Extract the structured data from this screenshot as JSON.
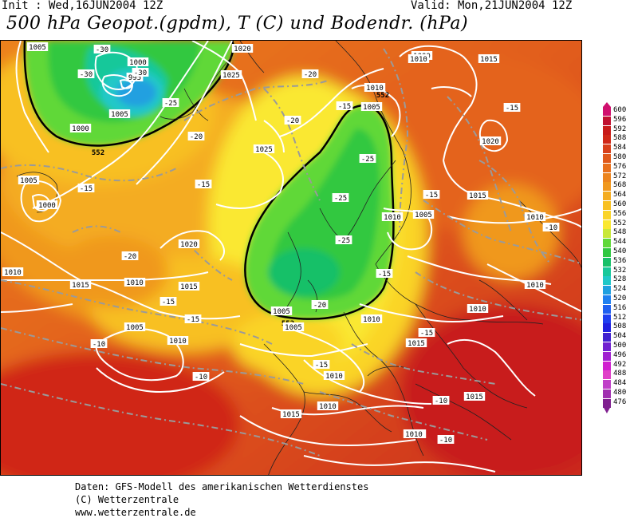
{
  "header": {
    "init": "Init : Wed,16JUN2004 12Z",
    "valid": "Valid: Mon,21JUN2004 12Z",
    "title": "500 hPa Geopot.(gpdm), T (C) und Bodendr. (hPa)"
  },
  "legend": {
    "levels": [
      "600",
      "596",
      "592",
      "588",
      "584",
      "580",
      "576",
      "572",
      "568",
      "564",
      "560",
      "556",
      "552",
      "548",
      "544",
      "540",
      "536",
      "532",
      "528",
      "524",
      "520",
      "516",
      "512",
      "508",
      "504",
      "500",
      "496",
      "492",
      "488",
      "484",
      "480",
      "476"
    ],
    "colors": [
      "#d0106e",
      "#c01030",
      "#c81a1a",
      "#d02818",
      "#d8401a",
      "#e0581a",
      "#e8701c",
      "#ec841e",
      "#f0981e",
      "#f4ac20",
      "#f8c020",
      "#fad428",
      "#fae830",
      "#c8e838",
      "#60d838",
      "#30c840",
      "#18c068",
      "#18c89a",
      "#20c8c8",
      "#20a0e0",
      "#2080f0",
      "#2060f0",
      "#2040f0",
      "#2020e0",
      "#4020d0",
      "#7020d0",
      "#a020d0",
      "#d020d0",
      "#e040c8",
      "#c040c8",
      "#a030b0",
      "#802090"
    ]
  },
  "map": {
    "labels": [
      {
        "text": "1005",
        "kind": "pressure"
      },
      {
        "text": "-30",
        "kind": "temperature"
      },
      {
        "text": "1000",
        "kind": "pressure"
      },
      {
        "text": "995",
        "kind": "pressure"
      },
      {
        "text": "-30",
        "kind": "temperature"
      },
      {
        "text": "-30",
        "kind": "temperature"
      },
      {
        "text": "1020",
        "kind": "pressure"
      },
      {
        "text": "1025",
        "kind": "pressure"
      },
      {
        "text": "-25",
        "kind": "temperature"
      },
      {
        "text": "-20",
        "kind": "temperature"
      },
      {
        "text": "1005",
        "kind": "pressure"
      },
      {
        "text": "1000",
        "kind": "pressure"
      },
      {
        "text": "552",
        "kind": "geopotential"
      },
      {
        "text": "-20",
        "kind": "temperature"
      },
      {
        "text": "1005",
        "kind": "pressure"
      },
      {
        "text": "1000",
        "kind": "pressure"
      },
      {
        "text": "-15",
        "kind": "temperature"
      },
      {
        "text": "-15",
        "kind": "temperature"
      },
      {
        "text": "1020",
        "kind": "pressure"
      },
      {
        "text": "1010",
        "kind": "pressure"
      },
      {
        "text": "1015",
        "kind": "pressure"
      },
      {
        "text": "-20",
        "kind": "temperature"
      },
      {
        "text": "1010",
        "kind": "pressure"
      },
      {
        "text": "1015",
        "kind": "pressure"
      },
      {
        "text": "-15",
        "kind": "temperature"
      },
      {
        "text": "-15",
        "kind": "temperature"
      },
      {
        "text": "1005",
        "kind": "pressure"
      },
      {
        "text": "1010",
        "kind": "pressure"
      },
      {
        "text": "-10",
        "kind": "temperature"
      },
      {
        "text": "-10",
        "kind": "temperature"
      },
      {
        "text": "-20",
        "kind": "temperature"
      },
      {
        "text": "1025",
        "kind": "pressure"
      },
      {
        "text": "1010",
        "kind": "pressure"
      },
      {
        "text": "1005",
        "kind": "pressure"
      },
      {
        "text": "552",
        "kind": "geopotential"
      },
      {
        "text": "-15",
        "kind": "temperature"
      },
      {
        "text": "-25",
        "kind": "temperature"
      },
      {
        "text": "-25",
        "kind": "temperature"
      },
      {
        "text": "-25",
        "kind": "temperature"
      },
      {
        "text": "1005",
        "kind": "pressure"
      },
      {
        "text": "-20",
        "kind": "temperature"
      },
      {
        "text": "552",
        "kind": "geopotential"
      },
      {
        "text": "1005",
        "kind": "pressure"
      },
      {
        "text": "1010",
        "kind": "pressure"
      },
      {
        "text": "1000",
        "kind": "pressure"
      },
      {
        "text": "1010",
        "kind": "pressure"
      },
      {
        "text": "1015",
        "kind": "pressure"
      },
      {
        "text": "-15",
        "kind": "temperature"
      },
      {
        "text": "1020",
        "kind": "pressure"
      },
      {
        "text": "-15",
        "kind": "temperature"
      },
      {
        "text": "1015",
        "kind": "pressure"
      },
      {
        "text": "1010",
        "kind": "pressure"
      },
      {
        "text": "1005",
        "kind": "pressure"
      },
      {
        "text": "1010",
        "kind": "pressure"
      },
      {
        "text": "-15",
        "kind": "temperature"
      },
      {
        "text": "1010",
        "kind": "pressure"
      },
      {
        "text": "-10",
        "kind": "temperature"
      },
      {
        "text": "1010",
        "kind": "pressure"
      },
      {
        "text": "1015",
        "kind": "pressure"
      },
      {
        "text": "-15",
        "kind": "temperature"
      },
      {
        "text": "1015",
        "kind": "pressure"
      },
      {
        "text": "1010",
        "kind": "pressure"
      },
      {
        "text": "-15",
        "kind": "temperature"
      },
      {
        "text": "1010",
        "kind": "pressure"
      },
      {
        "text": "-10",
        "kind": "temperature"
      },
      {
        "text": "1015",
        "kind": "pressure"
      },
      {
        "text": "-10",
        "kind": "temperature"
      },
      {
        "text": "1015",
        "kind": "pressure"
      },
      {
        "text": "1010",
        "kind": "pressure"
      }
    ]
  },
  "footer": {
    "line1": "Daten: GFS-Modell des amerikanischen Wetterdienstes",
    "line2": "(C) Wetterzentrale",
    "line3": "www.wetterzentrale.de"
  }
}
